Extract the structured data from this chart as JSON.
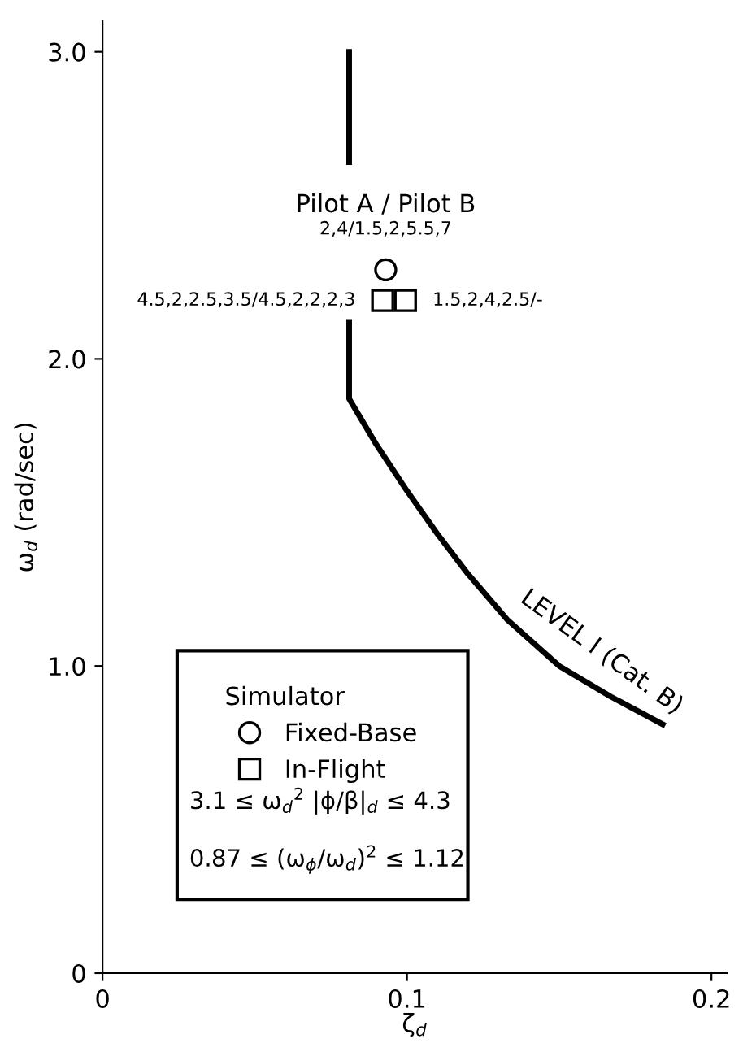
{
  "chart_data": {
    "type": "line",
    "xlabel": "ζ$_{d}$",
    "ylabel": "ω$_{d}$ (rad/sec)",
    "legend_title": "Simulator",
    "series": [
      {
        "color": "#000000",
        "x": [
          0.081,
          0.081,
          null,
          0.081,
          0.081,
          0.081,
          0.09,
          0.1,
          0.11,
          0.12,
          0.133,
          0.15,
          0.167,
          0.184
        ],
        "values": [
          3.0,
          2.64,
          null,
          2.12,
          1.87,
          1.87,
          1.72,
          1.57,
          1.43,
          1.3,
          1.15,
          1.0,
          0.9,
          0.81
        ]
      },
      {
        "type": "scatter",
        "name": "Fixed-Base",
        "marker": "circle",
        "color": "#000000",
        "x": [
          0.093
        ],
        "values": [
          2.29
        ]
      },
      {
        "type": "scatter",
        "name": "In-Flight",
        "marker": "square",
        "color": "#000000",
        "x": [
          0.092,
          0.0995
        ],
        "values": [
          2.19,
          2.19
        ]
      }
    ],
    "annotations": [
      {
        "text": "2,4/1.5,2,5.5,7",
        "x": 0.093,
        "y": 2.29
      },
      {
        "text": "4.5,2,2.5,3.5/4.5,2,2,2,3",
        "x": 0.092,
        "y": 2.19
      },
      {
        "text": "1.5,2,4,2.5/-",
        "x": 0.0995,
        "y": 2.19
      },
      {
        "text": "LEVEL I (Cat. B)",
        "x": 0.155,
        "y": 1.0
      },
      "Pilot A / Pilot B",
      "3.1 ≤ ω$_{d}$$^{2}$ |ϕ/β|$_{d}$ ≤ 4.3",
      "0.87 ≤ (ω$_{ϕ}$/ω$_{d}$)$^{2}$ ≤ 1.12"
    ],
    "xlim": [
      0,
      0.205
    ],
    "ylim": [
      0,
      3.1
    ],
    "xticks": [
      0,
      0.1,
      0.2
    ],
    "yticks": [
      0,
      {
        "value": 1,
        "label": "1.0"
      },
      {
        "value": 2,
        "label": "2.0"
      },
      {
        "value": 3,
        "label": "3.0"
      }
    ],
    "grid": false,
    "legend": "bottom left"
  }
}
